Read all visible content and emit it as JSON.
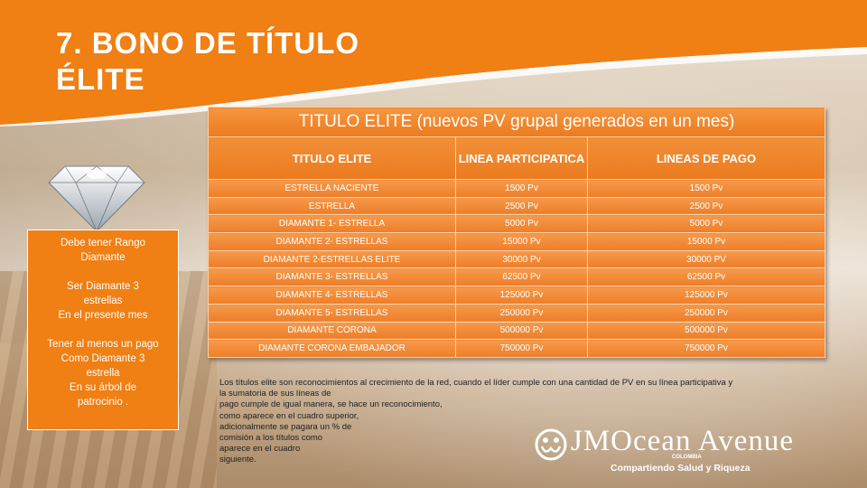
{
  "title_line1": "7. BONO DE TÍTULO",
  "title_line2": "ÉLITE",
  "requirements": {
    "line1": "Debe tener Rango",
    "line2": "Diamante",
    "line3": "Ser Diamante 3",
    "line4": "estrellas",
    "line5": "En el presente mes",
    "line6": "Tener al menos un pago",
    "line7": "Como Diamante 3",
    "line8": "estrella",
    "line9": "En su árbol de",
    "line10": "patrocinio ."
  },
  "table": {
    "title": "TITULO ELITE (nuevos PV grupal generados en un mes)",
    "headers": [
      "TITULO ELITE",
      "LINEA PARTICIPATICA",
      "LINEAS  DE PAGO"
    ],
    "rows": [
      [
        "ESTRELLA  NACIENTE",
        "1500 Pv",
        "1500 Pv"
      ],
      [
        "ESTRELLA",
        "2500 Pv",
        "2500 Pv"
      ],
      [
        "DIAMANTE  1- ESTRELLA",
        "5000 Pv",
        "5000 Pv"
      ],
      [
        "DIAMANTE  2- ESTRELLAS",
        "15000 Pv",
        "15000 Pv"
      ],
      [
        "DIAMANTE  2-ESTRELLAS ELITE",
        "30000 Pv",
        "30000 PV"
      ],
      [
        "DIAMANTE  3- ESTRELLAS",
        "62500 Pv",
        "62500 Pv"
      ],
      [
        "DIAMANTE  4- ESTRELLAS",
        "125000 Pv",
        "125000 Pv"
      ],
      [
        "DIAMANTE  5- ESTRELLAS",
        "250000 Pv",
        "250000 Pv"
      ],
      [
        "DIAMANTE  CORONA",
        "500000 Pv",
        "500000 Pv"
      ],
      [
        "DIAMANTE  CORONA  EMBAJADOR",
        "750000 Pv",
        "750000 Pv"
      ]
    ]
  },
  "description": [
    "Los títulos elite son reconocimientos al crecimiento de la red, cuando el líder cumple con una cantidad de PV en su línea participativa y",
    "la sumatoria de sus líneas de",
    "pago cumple de igual manera, se hace un reconocimiento,",
    "como aparece en el cuadro superior,",
    "adicionalmente se pagara un % de",
    "comisión a los títulos como",
    "aparece en el cuadro",
    "siguiente."
  ],
  "logo": {
    "name": "JMOcean Avenue",
    "country": "COLOMBIA",
    "tagline": "Compartiendo Salud y Riqueza"
  },
  "colors": {
    "accent": "#f07f14",
    "table": "#f28a2b"
  },
  "icons": {
    "diamond": "diamond-icon",
    "logo": "jmocean-logo-icon"
  }
}
